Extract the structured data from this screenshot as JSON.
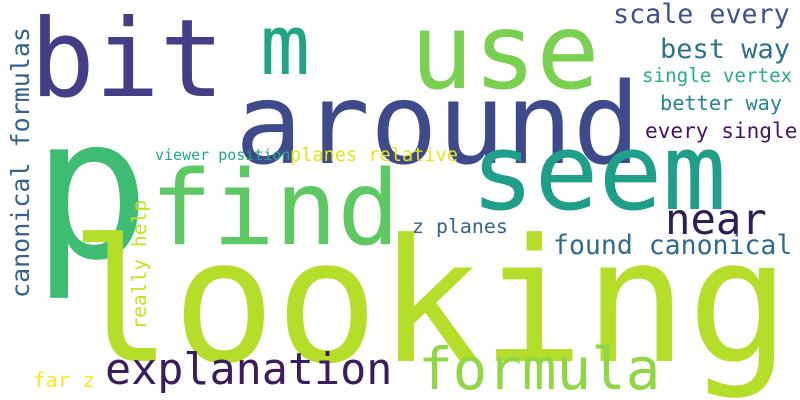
{
  "words": [
    {
      "text": "p",
      "color": "#3fbc73",
      "vertical": false
    },
    {
      "text": "looking",
      "color": "#b5de2b",
      "vertical": false
    },
    {
      "text": "around",
      "color": "#3e4a89",
      "vertical": false
    },
    {
      "text": "bit",
      "color": "#433e85",
      "vertical": false
    },
    {
      "text": "use",
      "color": "#7ad151",
      "vertical": false
    },
    {
      "text": "m",
      "color": "#21a585",
      "vertical": false
    },
    {
      "text": "seem",
      "color": "#1f9e89",
      "vertical": false
    },
    {
      "text": "find",
      "color": "#5ec962",
      "vertical": false
    },
    {
      "text": "formula",
      "color": "#8fd744",
      "vertical": false
    },
    {
      "text": "explanation",
      "color": "#3b1c5c",
      "vertical": false
    },
    {
      "text": "near",
      "color": "#2d1e5a",
      "vertical": false
    },
    {
      "text": "found canonical",
      "color": "#2f6b8e",
      "vertical": false
    },
    {
      "text": "canonical formulas",
      "color": "#33638d",
      "vertical": true
    },
    {
      "text": "scale every",
      "color": "#3b528b",
      "vertical": false
    },
    {
      "text": "best way",
      "color": "#2c718e",
      "vertical": false
    },
    {
      "text": "single vertex",
      "color": "#29af7f",
      "vertical": false
    },
    {
      "text": "better way",
      "color": "#25858e",
      "vertical": false
    },
    {
      "text": "every single",
      "color": "#471365",
      "vertical": false
    },
    {
      "text": "planes relative",
      "color": "#e4e419",
      "vertical": false
    },
    {
      "text": "viewer position",
      "color": "#22a884",
      "vertical": false
    },
    {
      "text": "z planes",
      "color": "#33638d",
      "vertical": false
    },
    {
      "text": "really help",
      "color": "#c8e020",
      "vertical": true
    },
    {
      "text": "far z",
      "color": "#fde725",
      "vertical": false
    }
  ]
}
